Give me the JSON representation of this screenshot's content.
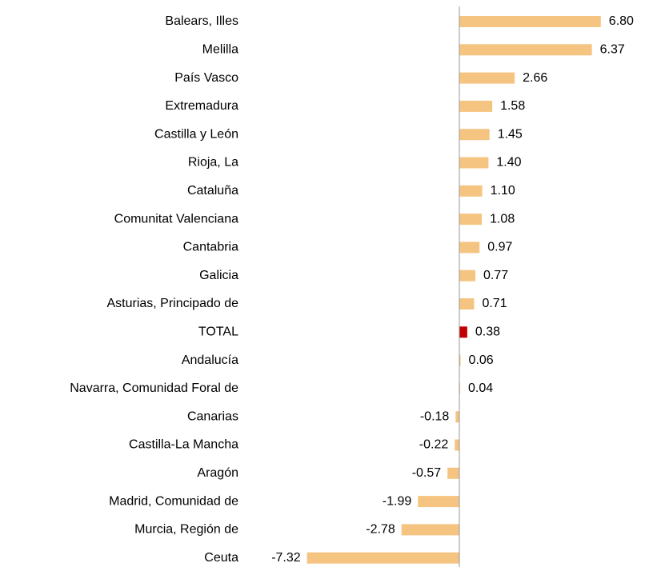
{
  "chart_data": {
    "type": "barh",
    "categories": [
      "Balears, Illes",
      "Melilla",
      "País Vasco",
      "Extremadura",
      "Castilla y León",
      "Rioja, La",
      "Cataluña",
      "Comunitat Valenciana",
      "Cantabria",
      "Galicia",
      "Asturias, Principado de",
      "TOTAL",
      "Andalucía",
      "Navarra, Comunidad Foral de",
      "Canarias",
      "Castilla-La Mancha",
      "Aragón",
      "Madrid, Comunidad de",
      "Murcia, Región de",
      "Ceuta"
    ],
    "values": [
      6.8,
      6.37,
      2.66,
      1.58,
      1.45,
      1.4,
      1.1,
      1.08,
      0.97,
      0.77,
      0.71,
      0.38,
      0.06,
      0.04,
      -0.18,
      -0.22,
      -0.57,
      -1.99,
      -2.78,
      -7.32
    ],
    "value_labels": [
      "6.80",
      "6.37",
      "2.66",
      "1.58",
      "1.45",
      "1.40",
      "1.10",
      "1.08",
      "0.97",
      "0.77",
      "0.71",
      "0.38",
      "0.06",
      "0.04",
      "-0.18",
      "-0.22",
      "-0.57",
      "-1.99",
      "-2.78",
      "-7.32"
    ],
    "colors": [
      "#f5c481",
      "#f5c481",
      "#f5c481",
      "#f5c481",
      "#f5c481",
      "#f5c481",
      "#f5c481",
      "#f5c481",
      "#f5c481",
      "#f5c481",
      "#f5c481",
      "#c00000",
      "#f5c481",
      "#f5c481",
      "#f5c481",
      "#f5c481",
      "#f5c481",
      "#f5c481",
      "#f5c481",
      "#f5c481"
    ],
    "xlim": [
      -10,
      9
    ]
  }
}
